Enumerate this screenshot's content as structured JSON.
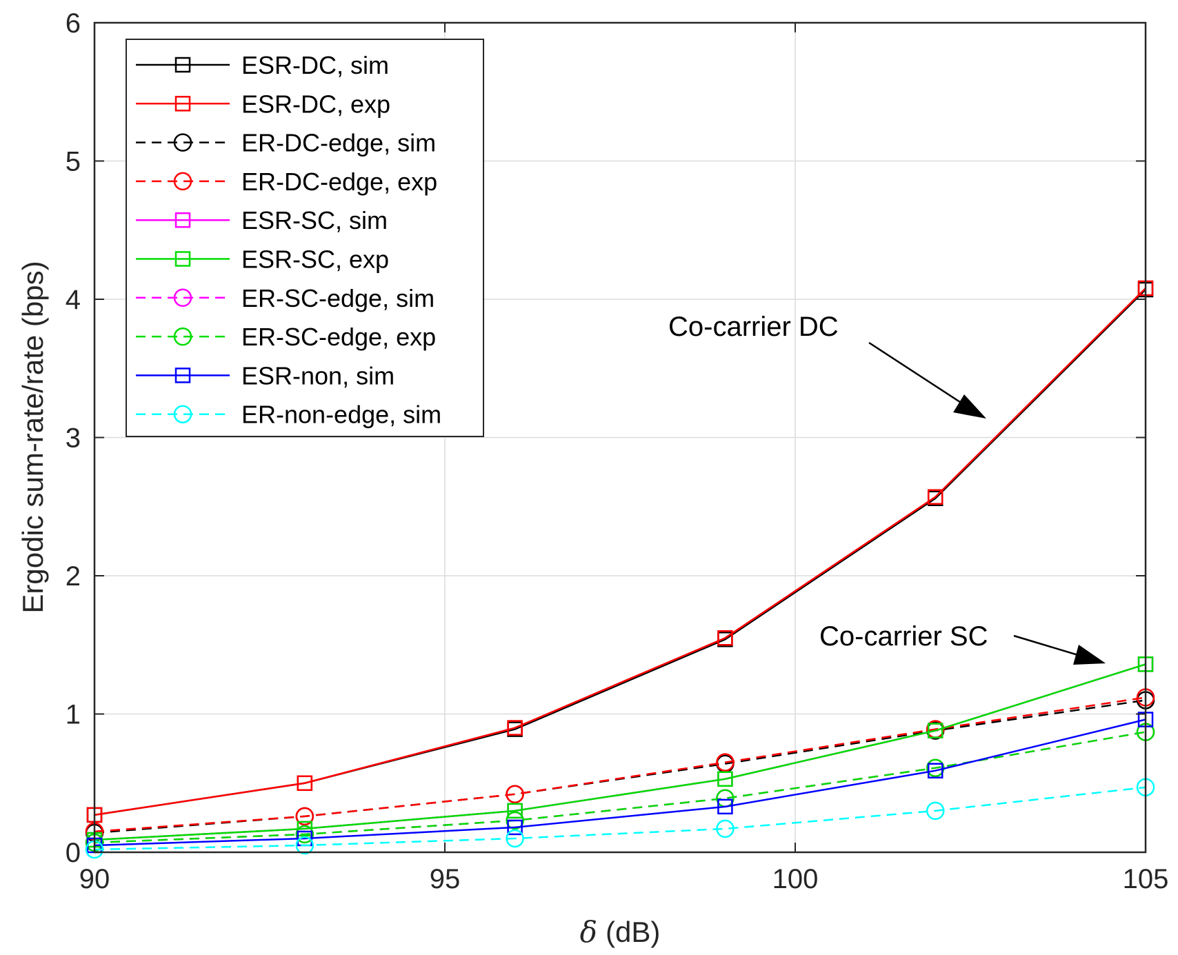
{
  "chart_data": {
    "type": "line",
    "title": "",
    "xlabel_symbol": "δ",
    "xlabel_unit": "(dB)",
    "ylabel": "Ergodic sum-rate/rate (bps)",
    "xlim": [
      90,
      105
    ],
    "ylim": [
      0,
      6
    ],
    "xticks": [
      90,
      95,
      100,
      105
    ],
    "yticks": [
      0,
      1,
      2,
      3,
      4,
      5,
      6
    ],
    "grid": true,
    "legend_position": "top-left",
    "x": [
      90,
      93,
      96,
      99,
      102,
      105
    ],
    "series": [
      {
        "name": "ESR-DC, sim",
        "color": "#000000",
        "dash": "solid",
        "marker": "square",
        "values": [
          0.27,
          0.5,
          0.89,
          1.54,
          2.56,
          4.07
        ]
      },
      {
        "name": "ESR-DC, exp",
        "color": "#ff0000",
        "dash": "solid",
        "marker": "square",
        "values": [
          0.27,
          0.5,
          0.9,
          1.55,
          2.57,
          4.08
        ]
      },
      {
        "name": "ER-DC-edge, sim",
        "color": "#000000",
        "dash": "dashed",
        "marker": "circle",
        "values": [
          0.14,
          0.26,
          0.42,
          0.64,
          0.88,
          1.1
        ]
      },
      {
        "name": "ER-DC-edge, exp",
        "color": "#ff0000",
        "dash": "dashed",
        "marker": "circle",
        "values": [
          0.15,
          0.26,
          0.42,
          0.65,
          0.89,
          1.12
        ]
      },
      {
        "name": "ESR-SC, sim",
        "color": "#ff00ff",
        "dash": "solid",
        "marker": "square",
        "values": [
          0.09,
          0.17,
          0.3,
          0.53,
          0.88,
          1.36
        ]
      },
      {
        "name": "ESR-SC, exp",
        "color": "#00dd00",
        "dash": "solid",
        "marker": "square",
        "values": [
          0.09,
          0.17,
          0.3,
          0.53,
          0.88,
          1.36
        ]
      },
      {
        "name": "ER-SC-edge, sim",
        "color": "#ff00ff",
        "dash": "dashed",
        "marker": "circle",
        "values": [
          0.07,
          0.13,
          0.23,
          0.39,
          0.61,
          0.87
        ]
      },
      {
        "name": "ER-SC-edge, exp",
        "color": "#00dd00",
        "dash": "dashed",
        "marker": "circle",
        "values": [
          0.07,
          0.13,
          0.23,
          0.39,
          0.61,
          0.87
        ]
      },
      {
        "name": "ESR-non, sim",
        "color": "#0000ff",
        "dash": "solid",
        "marker": "square",
        "values": [
          0.05,
          0.1,
          0.18,
          0.33,
          0.59,
          0.96
        ]
      },
      {
        "name": "ER-non-edge, sim",
        "color": "#00ffff",
        "dash": "dashed",
        "marker": "circle",
        "values": [
          0.02,
          0.05,
          0.1,
          0.17,
          0.3,
          0.47
        ]
      }
    ],
    "annotations": [
      {
        "text": "Co-carrier DC"
      },
      {
        "text": "Co-carrier SC"
      }
    ]
  }
}
